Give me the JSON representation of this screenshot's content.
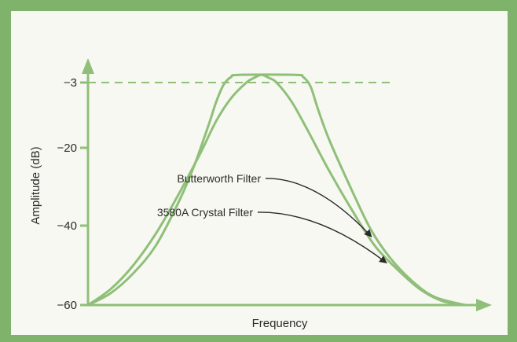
{
  "chart_data": {
    "type": "line",
    "xlabel": "Frequency",
    "ylabel": "Amplitude  (dB)",
    "yticks": [
      -3,
      -20,
      -40,
      -60
    ],
    "reference_line": {
      "y": -3,
      "style": "dashed"
    },
    "series": [
      {
        "name": "Butterworth Filter",
        "x": [
          0,
          0.06,
          0.12,
          0.18,
          0.24,
          0.28,
          0.32,
          0.34,
          0.36,
          0.38,
          0.4,
          0.55,
          0.57,
          0.59,
          0.61,
          0.64,
          0.7,
          0.75,
          0.8,
          0.86,
          0.92,
          1.0
        ],
        "y": [
          -60,
          -57,
          -52,
          -45,
          -34,
          -25,
          -14,
          -8,
          -3.5,
          -1.5,
          -1,
          -1,
          -1.5,
          -4,
          -10,
          -18,
          -31,
          -41,
          -48,
          -54,
          -58,
          -60
        ]
      },
      {
        "name": "3580A Crystal Filter",
        "x": [
          0,
          0.06,
          0.12,
          0.18,
          0.24,
          0.3,
          0.34,
          0.38,
          0.42,
          0.44,
          0.46,
          0.48,
          0.5,
          0.54,
          0.58,
          0.64,
          0.7,
          0.76,
          0.82,
          0.88,
          0.94,
          1.0
        ],
        "y": [
          -60,
          -56,
          -50,
          -42,
          -32,
          -21,
          -13,
          -7,
          -3,
          -1.8,
          -1,
          -1.8,
          -3,
          -8,
          -15,
          -26,
          -36,
          -45,
          -51,
          -56,
          -59,
          -60
        ]
      }
    ],
    "annotations": [
      {
        "text": "Butterworth Filter",
        "series": "Butterworth Filter",
        "at_x": 0.76
      },
      {
        "text": "3580A Crystal Filter",
        "series": "3580A Crystal Filter",
        "at_x": 0.8
      }
    ],
    "color": "#8fbf78"
  }
}
